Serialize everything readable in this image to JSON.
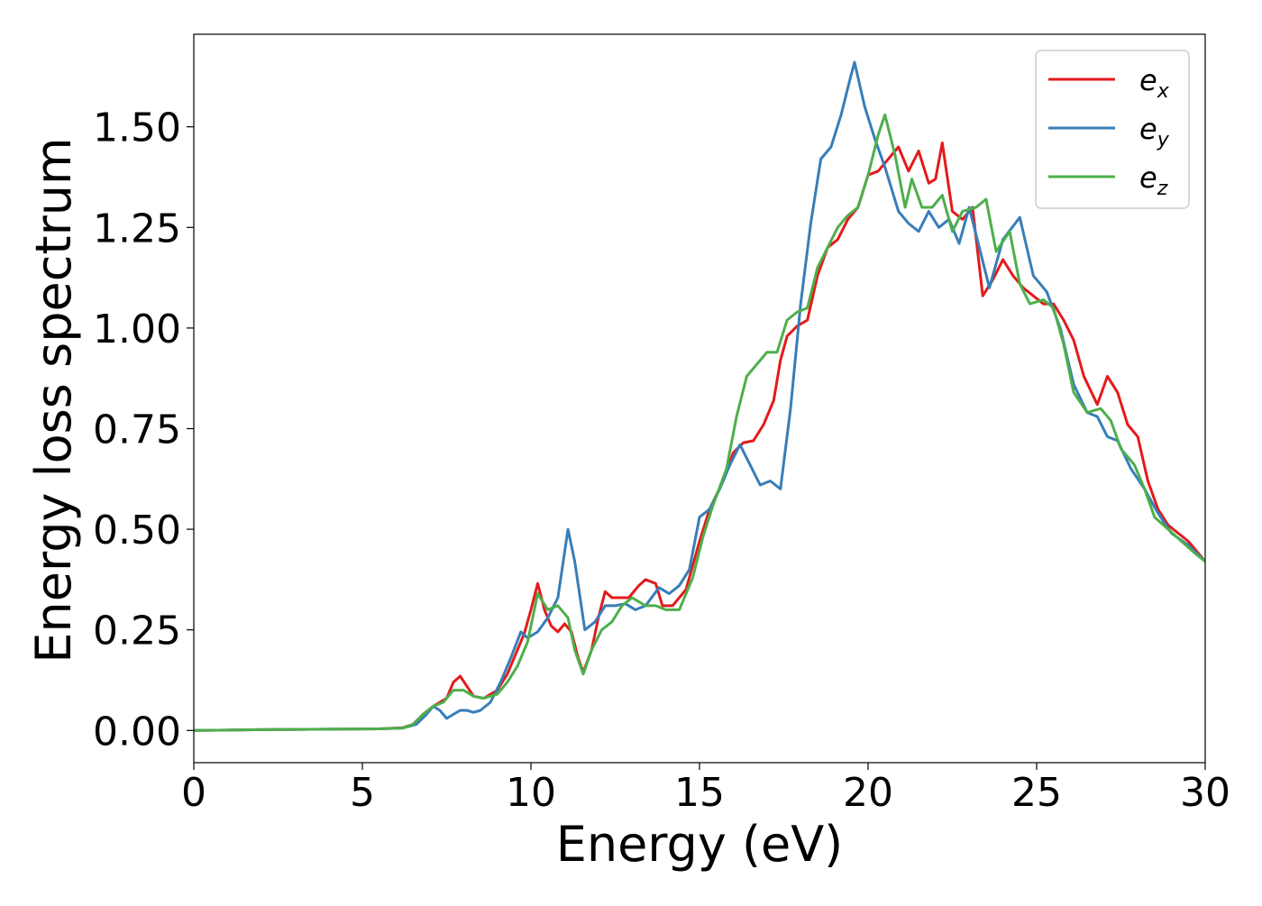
{
  "chart_data": {
    "type": "line",
    "title": "",
    "xlabel": "Energy (eV)",
    "ylabel": "Energy loss spectrum",
    "xlim": [
      0,
      30
    ],
    "ylim": [
      -0.08,
      1.73
    ],
    "x_ticks": [
      "0",
      "5",
      "10",
      "15",
      "20",
      "25",
      "30"
    ],
    "y_ticks": [
      "0.00",
      "0.25",
      "0.50",
      "0.75",
      "1.00",
      "1.25",
      "1.50"
    ],
    "grid": false,
    "legend_position": "top-right",
    "series": [
      {
        "name": "e",
        "subscript": "x",
        "color": "#e41a1c",
        "points": [
          [
            0,
            0.0
          ],
          [
            2,
            0.002
          ],
          [
            4,
            0.003
          ],
          [
            5.5,
            0.004
          ],
          [
            6.2,
            0.007
          ],
          [
            6.5,
            0.015
          ],
          [
            6.8,
            0.04
          ],
          [
            7.1,
            0.06
          ],
          [
            7.5,
            0.08
          ],
          [
            7.7,
            0.12
          ],
          [
            7.9,
            0.135
          ],
          [
            8.1,
            0.11
          ],
          [
            8.3,
            0.085
          ],
          [
            8.6,
            0.08
          ],
          [
            9.0,
            0.1
          ],
          [
            9.3,
            0.14
          ],
          [
            9.6,
            0.2
          ],
          [
            9.8,
            0.24
          ],
          [
            10.0,
            0.3
          ],
          [
            10.2,
            0.365
          ],
          [
            10.4,
            0.3
          ],
          [
            10.6,
            0.26
          ],
          [
            10.8,
            0.245
          ],
          [
            11.0,
            0.265
          ],
          [
            11.2,
            0.245
          ],
          [
            11.4,
            0.18
          ],
          [
            11.55,
            0.145
          ],
          [
            11.8,
            0.2
          ],
          [
            12.0,
            0.28
          ],
          [
            12.2,
            0.345
          ],
          [
            12.4,
            0.33
          ],
          [
            12.6,
            0.33
          ],
          [
            12.9,
            0.33
          ],
          [
            13.2,
            0.36
          ],
          [
            13.4,
            0.375
          ],
          [
            13.7,
            0.365
          ],
          [
            13.9,
            0.31
          ],
          [
            14.2,
            0.31
          ],
          [
            14.6,
            0.35
          ],
          [
            15.0,
            0.47
          ],
          [
            15.3,
            0.55
          ],
          [
            15.7,
            0.62
          ],
          [
            16.0,
            0.69
          ],
          [
            16.3,
            0.715
          ],
          [
            16.6,
            0.72
          ],
          [
            16.9,
            0.76
          ],
          [
            17.2,
            0.82
          ],
          [
            17.4,
            0.92
          ],
          [
            17.6,
            0.98
          ],
          [
            17.9,
            1.005
          ],
          [
            18.2,
            1.02
          ],
          [
            18.5,
            1.13
          ],
          [
            18.8,
            1.2
          ],
          [
            19.1,
            1.22
          ],
          [
            19.4,
            1.27
          ],
          [
            19.7,
            1.3
          ],
          [
            20.0,
            1.38
          ],
          [
            20.3,
            1.39
          ],
          [
            20.6,
            1.42
          ],
          [
            20.9,
            1.45
          ],
          [
            21.2,
            1.39
          ],
          [
            21.5,
            1.44
          ],
          [
            21.8,
            1.36
          ],
          [
            22.0,
            1.37
          ],
          [
            22.2,
            1.46
          ],
          [
            22.5,
            1.29
          ],
          [
            22.8,
            1.27
          ],
          [
            23.1,
            1.3
          ],
          [
            23.4,
            1.08
          ],
          [
            23.7,
            1.12
          ],
          [
            24.0,
            1.17
          ],
          [
            24.3,
            1.13
          ],
          [
            24.6,
            1.1
          ],
          [
            24.9,
            1.08
          ],
          [
            25.2,
            1.06
          ],
          [
            25.5,
            1.06
          ],
          [
            25.8,
            1.02
          ],
          [
            26.1,
            0.97
          ],
          [
            26.4,
            0.88
          ],
          [
            26.8,
            0.81
          ],
          [
            27.1,
            0.88
          ],
          [
            27.4,
            0.84
          ],
          [
            27.7,
            0.76
          ],
          [
            28.0,
            0.73
          ],
          [
            28.3,
            0.62
          ],
          [
            28.6,
            0.55
          ],
          [
            28.9,
            0.51
          ],
          [
            29.2,
            0.49
          ],
          [
            29.5,
            0.47
          ],
          [
            30.0,
            0.42
          ]
        ]
      },
      {
        "name": "e",
        "subscript": "y",
        "color": "#377eb8",
        "points": [
          [
            0,
            0.0
          ],
          [
            2,
            0.002
          ],
          [
            4,
            0.003
          ],
          [
            5.5,
            0.004
          ],
          [
            6.2,
            0.006
          ],
          [
            6.6,
            0.015
          ],
          [
            6.9,
            0.04
          ],
          [
            7.1,
            0.06
          ],
          [
            7.3,
            0.05
          ],
          [
            7.5,
            0.03
          ],
          [
            7.7,
            0.04
          ],
          [
            7.9,
            0.05
          ],
          [
            8.1,
            0.05
          ],
          [
            8.3,
            0.045
          ],
          [
            8.5,
            0.05
          ],
          [
            8.8,
            0.07
          ],
          [
            9.1,
            0.12
          ],
          [
            9.4,
            0.18
          ],
          [
            9.7,
            0.245
          ],
          [
            9.9,
            0.23
          ],
          [
            10.2,
            0.245
          ],
          [
            10.5,
            0.28
          ],
          [
            10.8,
            0.33
          ],
          [
            11.1,
            0.5
          ],
          [
            11.3,
            0.42
          ],
          [
            11.6,
            0.25
          ],
          [
            11.9,
            0.27
          ],
          [
            12.2,
            0.31
          ],
          [
            12.5,
            0.31
          ],
          [
            12.8,
            0.315
          ],
          [
            13.1,
            0.3
          ],
          [
            13.4,
            0.31
          ],
          [
            13.8,
            0.355
          ],
          [
            14.1,
            0.34
          ],
          [
            14.4,
            0.36
          ],
          [
            14.7,
            0.4
          ],
          [
            15.0,
            0.53
          ],
          [
            15.3,
            0.55
          ],
          [
            15.6,
            0.6
          ],
          [
            15.9,
            0.66
          ],
          [
            16.2,
            0.71
          ],
          [
            16.5,
            0.66
          ],
          [
            16.8,
            0.61
          ],
          [
            17.1,
            0.62
          ],
          [
            17.4,
            0.6
          ],
          [
            17.7,
            0.8
          ],
          [
            18.0,
            1.06
          ],
          [
            18.3,
            1.26
          ],
          [
            18.6,
            1.42
          ],
          [
            18.9,
            1.45
          ],
          [
            19.2,
            1.53
          ],
          [
            19.5,
            1.63
          ],
          [
            19.6,
            1.66
          ],
          [
            19.9,
            1.55
          ],
          [
            20.2,
            1.47
          ],
          [
            20.5,
            1.4
          ],
          [
            20.9,
            1.29
          ],
          [
            21.2,
            1.26
          ],
          [
            21.5,
            1.24
          ],
          [
            21.8,
            1.29
          ],
          [
            22.1,
            1.25
          ],
          [
            22.4,
            1.27
          ],
          [
            22.7,
            1.21
          ],
          [
            23.0,
            1.3
          ],
          [
            23.3,
            1.2
          ],
          [
            23.6,
            1.1
          ],
          [
            24.0,
            1.22
          ],
          [
            24.5,
            1.275
          ],
          [
            24.9,
            1.13
          ],
          [
            25.3,
            1.09
          ],
          [
            25.7,
            1.0
          ],
          [
            26.1,
            0.86
          ],
          [
            26.5,
            0.79
          ],
          [
            26.8,
            0.78
          ],
          [
            27.1,
            0.73
          ],
          [
            27.4,
            0.72
          ],
          [
            27.8,
            0.65
          ],
          [
            28.2,
            0.6
          ],
          [
            28.6,
            0.54
          ],
          [
            29.0,
            0.49
          ],
          [
            29.5,
            0.46
          ],
          [
            30.0,
            0.42
          ]
        ]
      },
      {
        "name": "e",
        "subscript": "z",
        "color": "#4daf4a",
        "points": [
          [
            0,
            0.0
          ],
          [
            2,
            0.002
          ],
          [
            4,
            0.003
          ],
          [
            5.5,
            0.004
          ],
          [
            6.2,
            0.006
          ],
          [
            6.5,
            0.015
          ],
          [
            6.8,
            0.04
          ],
          [
            7.1,
            0.06
          ],
          [
            7.4,
            0.07
          ],
          [
            7.7,
            0.1
          ],
          [
            8.0,
            0.1
          ],
          [
            8.3,
            0.085
          ],
          [
            8.6,
            0.08
          ],
          [
            9.0,
            0.09
          ],
          [
            9.3,
            0.12
          ],
          [
            9.6,
            0.16
          ],
          [
            9.9,
            0.22
          ],
          [
            10.2,
            0.34
          ],
          [
            10.5,
            0.3
          ],
          [
            10.8,
            0.31
          ],
          [
            11.1,
            0.28
          ],
          [
            11.3,
            0.2
          ],
          [
            11.55,
            0.14
          ],
          [
            11.8,
            0.2
          ],
          [
            12.1,
            0.25
          ],
          [
            12.4,
            0.27
          ],
          [
            12.7,
            0.31
          ],
          [
            13.0,
            0.33
          ],
          [
            13.4,
            0.31
          ],
          [
            13.7,
            0.31
          ],
          [
            14.0,
            0.3
          ],
          [
            14.4,
            0.3
          ],
          [
            14.8,
            0.38
          ],
          [
            15.1,
            0.48
          ],
          [
            15.4,
            0.56
          ],
          [
            15.8,
            0.65
          ],
          [
            16.1,
            0.78
          ],
          [
            16.4,
            0.88
          ],
          [
            16.7,
            0.91
          ],
          [
            17.0,
            0.94
          ],
          [
            17.3,
            0.94
          ],
          [
            17.6,
            1.02
          ],
          [
            17.9,
            1.04
          ],
          [
            18.2,
            1.05
          ],
          [
            18.5,
            1.15
          ],
          [
            18.8,
            1.2
          ],
          [
            19.1,
            1.25
          ],
          [
            19.4,
            1.28
          ],
          [
            19.7,
            1.3
          ],
          [
            20.0,
            1.38
          ],
          [
            20.3,
            1.48
          ],
          [
            20.5,
            1.53
          ],
          [
            20.8,
            1.43
          ],
          [
            21.1,
            1.3
          ],
          [
            21.3,
            1.37
          ],
          [
            21.6,
            1.3
          ],
          [
            21.9,
            1.3
          ],
          [
            22.2,
            1.33
          ],
          [
            22.5,
            1.24
          ],
          [
            22.8,
            1.29
          ],
          [
            23.2,
            1.3
          ],
          [
            23.5,
            1.32
          ],
          [
            23.8,
            1.19
          ],
          [
            24.2,
            1.24
          ],
          [
            24.5,
            1.11
          ],
          [
            24.8,
            1.06
          ],
          [
            25.2,
            1.07
          ],
          [
            25.5,
            1.05
          ],
          [
            25.8,
            0.96
          ],
          [
            26.1,
            0.84
          ],
          [
            26.5,
            0.79
          ],
          [
            26.9,
            0.8
          ],
          [
            27.2,
            0.77
          ],
          [
            27.5,
            0.7
          ],
          [
            27.9,
            0.66
          ],
          [
            28.2,
            0.6
          ],
          [
            28.5,
            0.53
          ],
          [
            28.9,
            0.5
          ],
          [
            29.3,
            0.47
          ],
          [
            29.7,
            0.44
          ],
          [
            30.0,
            0.42
          ]
        ]
      }
    ]
  }
}
